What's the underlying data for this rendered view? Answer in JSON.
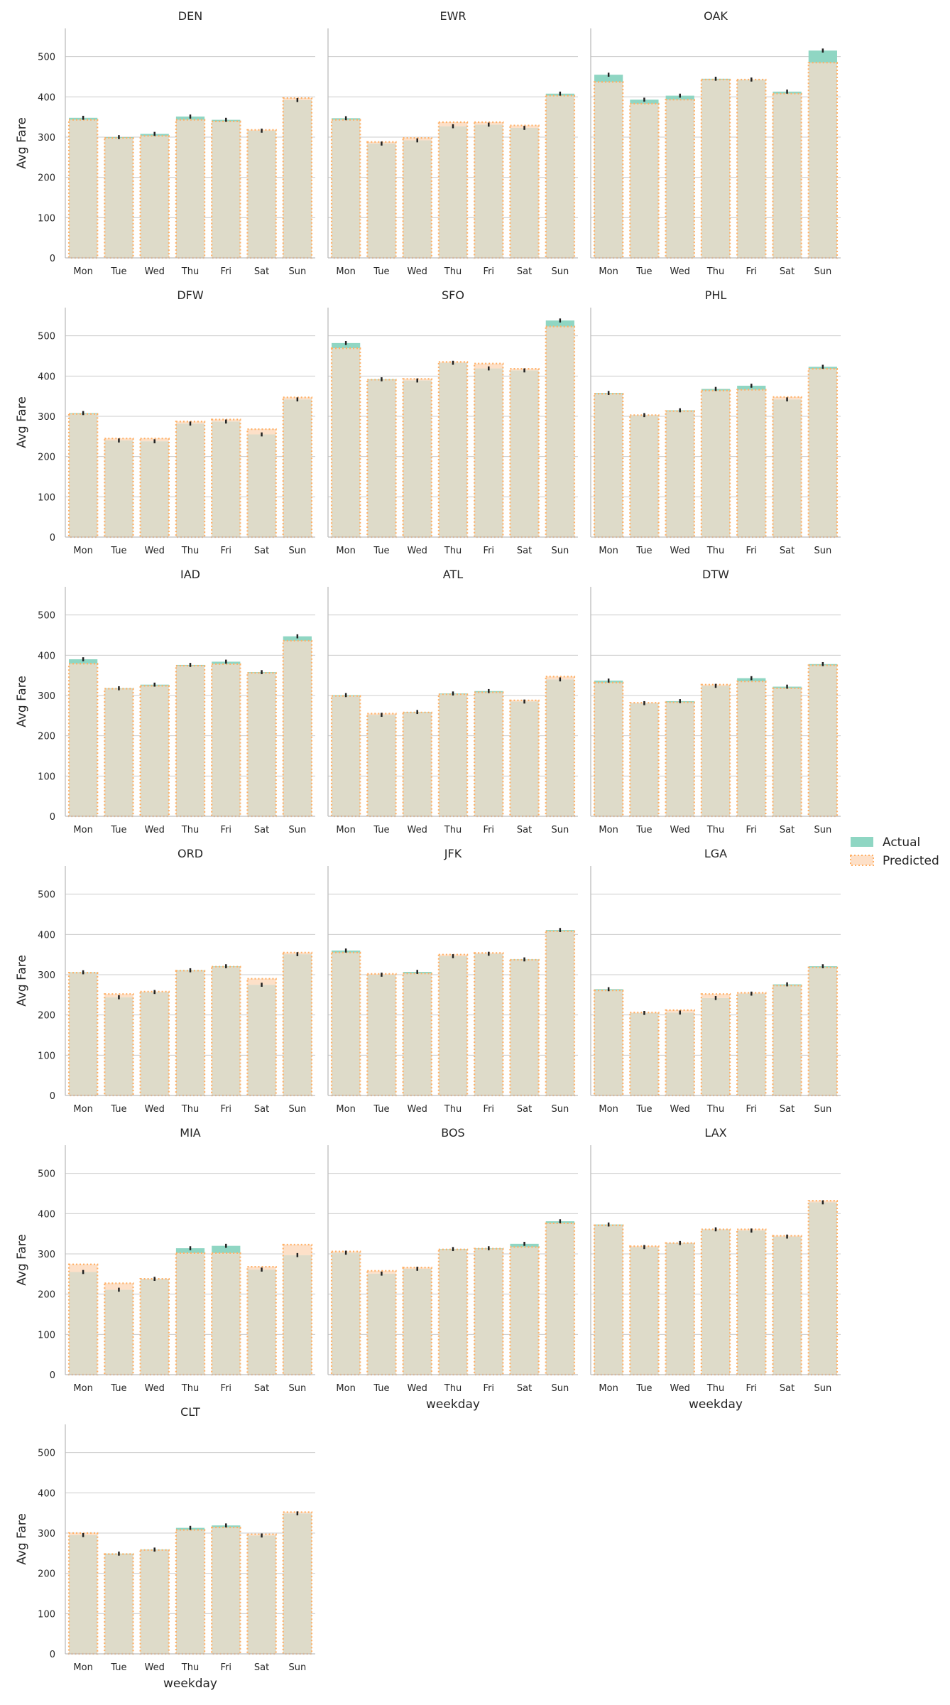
{
  "chart_data": {
    "type": "bar",
    "categories": [
      "Mon",
      "Tue",
      "Wed",
      "Thu",
      "Fri",
      "Sat",
      "Sun"
    ],
    "xlabel": "weekday",
    "ylabel": "Avg Fare",
    "ylim": [
      0,
      570
    ],
    "yticks": [
      0,
      100,
      200,
      300,
      400,
      500
    ],
    "grid": true,
    "legend_position": "right",
    "series_names": [
      "Actual",
      "Predicted"
    ],
    "colors": {
      "actual": "#8fd6c3",
      "predicted": "#ffb066",
      "overlap": "#dedbc9",
      "error_bar": "#222222"
    },
    "panels": [
      {
        "title": "DEN",
        "actual": [
          348,
          300,
          308,
          351,
          343,
          316,
          392
        ],
        "predicted": [
          343,
          298,
          303,
          343,
          339,
          318,
          397
        ]
      },
      {
        "title": "EWR",
        "actual": [
          347,
          284,
          292,
          327,
          331,
          323,
          408
        ],
        "predicted": [
          343,
          288,
          298,
          337,
          337,
          329,
          403
        ]
      },
      {
        "title": "OAK",
        "actual": [
          455,
          393,
          403,
          445,
          443,
          413,
          515
        ],
        "predicted": [
          437,
          383,
          393,
          443,
          443,
          408,
          485
        ]
      },
      {
        "title": "DFW",
        "actual": [
          308,
          240,
          238,
          282,
          287,
          255,
          342
        ],
        "predicted": [
          306,
          245,
          245,
          287,
          292,
          268,
          347
        ]
      },
      {
        "title": "SFO",
        "actual": [
          482,
          392,
          389,
          433,
          419,
          414,
          538
        ],
        "predicted": [
          469,
          391,
          393,
          435,
          431,
          418,
          523
        ]
      },
      {
        "title": "PHL",
        "actual": [
          358,
          303,
          315,
          368,
          376,
          342,
          423
        ],
        "predicted": [
          356,
          303,
          313,
          364,
          366,
          348,
          418
        ]
      },
      {
        "title": "IAD",
        "actual": [
          390,
          318,
          327,
          376,
          384,
          358,
          447
        ],
        "predicted": [
          379,
          317,
          324,
          374,
          378,
          356,
          436
        ]
      },
      {
        "title": "ATL",
        "actual": [
          301,
          252,
          259,
          305,
          311,
          285,
          340
        ],
        "predicted": [
          299,
          255,
          258,
          303,
          308,
          288,
          347
        ]
      },
      {
        "title": "DTW",
        "actual": [
          337,
          281,
          286,
          324,
          343,
          322,
          378
        ],
        "predicted": [
          332,
          282,
          283,
          327,
          335,
          318,
          375
        ]
      },
      {
        "title": "ORD",
        "actual": [
          306,
          244,
          257,
          311,
          321,
          275,
          351
        ],
        "predicted": [
          305,
          252,
          258,
          310,
          320,
          290,
          355
        ]
      },
      {
        "title": "JFK",
        "actual": [
          360,
          300,
          307,
          346,
          352,
          338,
          411
        ],
        "predicted": [
          355,
          302,
          303,
          350,
          354,
          337,
          408
        ]
      },
      {
        "title": "LGA",
        "actual": [
          264,
          205,
          206,
          242,
          253,
          276,
          321
        ],
        "predicted": [
          261,
          206,
          212,
          252,
          255,
          273,
          318
        ]
      },
      {
        "title": "MIA",
        "actual": [
          255,
          211,
          238,
          314,
          320,
          261,
          297
        ],
        "predicted": [
          274,
          227,
          238,
          302,
          302,
          268,
          323
        ]
      },
      {
        "title": "BOS",
        "actual": [
          303,
          251,
          263,
          312,
          314,
          325,
          381
        ],
        "predicted": [
          306,
          258,
          266,
          311,
          313,
          317,
          376
        ]
      },
      {
        "title": "LAX",
        "actual": [
          373,
          317,
          327,
          361,
          358,
          343,
          428
        ],
        "predicted": [
          371,
          319,
          327,
          361,
          361,
          345,
          432
        ]
      },
      {
        "title": "CLT",
        "actual": [
          295,
          249,
          259,
          313,
          319,
          294,
          349
        ],
        "predicted": [
          300,
          248,
          258,
          308,
          314,
          297,
          352
        ]
      }
    ]
  }
}
